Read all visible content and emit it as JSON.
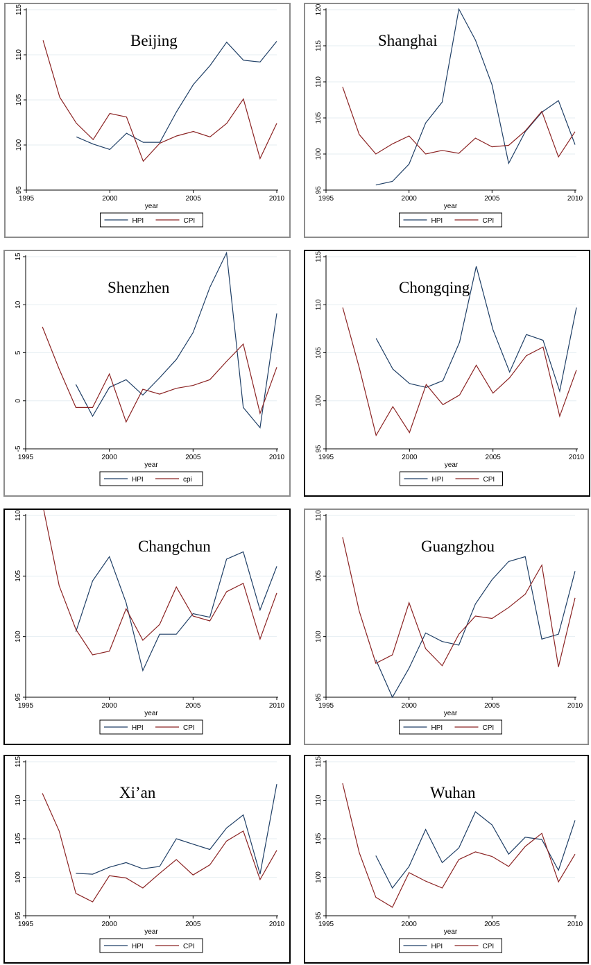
{
  "colors": {
    "hpi": "#1f3f66",
    "cpi": "#8b2323",
    "grid": "#e6eef2",
    "border_gray": "#8c8c8c",
    "border_black": "#000000"
  },
  "chart_data": [
    {
      "type": "line",
      "title": "Beijing",
      "xlabel": "year",
      "xlim": [
        1995,
        2010
      ],
      "ylim": [
        95,
        115
      ],
      "xticks": [
        "1995",
        "2000",
        "2005",
        "2010"
      ],
      "yticks": [
        "95",
        "100",
        "105",
        "110",
        "115"
      ],
      "grid": true,
      "legend": "bottom",
      "series": [
        {
          "name": "HPI",
          "x": [
            1998,
            1999,
            2000,
            2001,
            2002,
            2003,
            2004,
            2005,
            2006,
            2007,
            2008,
            2009,
            2010
          ],
          "y": [
            100.9,
            100.1,
            99.5,
            101.3,
            100.3,
            100.3,
            103.7,
            106.7,
            108.8,
            111.4,
            109.4,
            109.2,
            111.5
          ]
        },
        {
          "name": "CPI",
          "x": [
            1996,
            1997,
            1998,
            1999,
            2000,
            2001,
            2002,
            2003,
            2004,
            2005,
            2006,
            2007,
            2008,
            2009,
            2010
          ],
          "y": [
            111.6,
            105.3,
            102.4,
            100.6,
            103.5,
            103.1,
            98.2,
            100.2,
            101.0,
            101.5,
            100.9,
            102.4,
            105.1,
            98.5,
            102.4
          ]
        }
      ]
    },
    {
      "type": "line",
      "title": "Shanghai",
      "xlabel": "year",
      "xlim": [
        1995,
        2010
      ],
      "ylim": [
        95,
        120
      ],
      "xticks": [
        "1995",
        "2000",
        "2005",
        "2010"
      ],
      "yticks": [
        "95",
        "100",
        "105",
        "110",
        "115",
        "120"
      ],
      "grid": true,
      "legend": "bottom",
      "series": [
        {
          "name": "HPI",
          "x": [
            1998,
            1999,
            2000,
            2001,
            2002,
            2003,
            2004,
            2005,
            2006,
            2007,
            2008,
            2009,
            2010
          ],
          "y": [
            95.7,
            96.2,
            98.6,
            104.3,
            107.2,
            120.1,
            115.8,
            109.6,
            98.7,
            103.1,
            105.8,
            107.4,
            101.3
          ]
        },
        {
          "name": "CPI",
          "x": [
            1996,
            1997,
            1998,
            1999,
            2000,
            2001,
            2002,
            2003,
            2004,
            2005,
            2006,
            2007,
            2008,
            2009,
            2010
          ],
          "y": [
            109.3,
            102.7,
            100.0,
            101.4,
            102.5,
            100.0,
            100.5,
            100.1,
            102.2,
            101.0,
            101.2,
            103.2,
            105.9,
            99.6,
            103.1
          ]
        }
      ]
    },
    {
      "type": "line",
      "title": "Shenzhen",
      "xlabel": "year",
      "xlim": [
        1995,
        2010
      ],
      "ylim": [
        -5,
        15
      ],
      "xticks": [
        "1995",
        "2000",
        "2005",
        "2010"
      ],
      "yticks": [
        "-5",
        "0",
        "5",
        "10",
        "15"
      ],
      "grid": true,
      "legend": "bottom",
      "series": [
        {
          "name": "HPI",
          "x": [
            1998,
            1999,
            2000,
            2001,
            2002,
            2003,
            2004,
            2005,
            2006,
            2007,
            2008,
            2009,
            2010
          ],
          "y": [
            1.7,
            -1.6,
            1.4,
            2.2,
            0.6,
            2.4,
            4.3,
            7.1,
            11.8,
            15.4,
            -0.7,
            -2.8,
            9.1
          ]
        },
        {
          "name": "cpi",
          "x": [
            1996,
            1997,
            1998,
            1999,
            2000,
            2001,
            2002,
            2003,
            2004,
            2005,
            2006,
            2007,
            2008,
            2009,
            2010
          ],
          "y": [
            7.7,
            3.3,
            -0.7,
            -0.7,
            2.8,
            -2.2,
            1.2,
            0.7,
            1.3,
            1.6,
            2.2,
            4.1,
            5.9,
            -1.3,
            3.5
          ]
        }
      ]
    },
    {
      "type": "line",
      "title": "Chongqing",
      "xlabel": "year",
      "xlim": [
        1995,
        2010
      ],
      "ylim": [
        95,
        115
      ],
      "xticks": [
        "1995",
        "2000",
        "2005",
        "2010"
      ],
      "yticks": [
        "95",
        "100",
        "105",
        "110",
        "115"
      ],
      "grid": true,
      "legend": "bottom",
      "series": [
        {
          "name": "HPI",
          "x": [
            1998,
            1999,
            2000,
            2001,
            2002,
            2003,
            2004,
            2005,
            2006,
            2007,
            2008,
            2009,
            2010
          ],
          "y": [
            106.5,
            103.3,
            101.8,
            101.4,
            102.1,
            106.1,
            114.0,
            107.4,
            103.0,
            106.9,
            106.3,
            101.0,
            109.7
          ]
        },
        {
          "name": "CPI",
          "x": [
            1996,
            1997,
            1998,
            1999,
            2000,
            2001,
            2002,
            2003,
            2004,
            2005,
            2006,
            2007,
            2008,
            2009,
            2010
          ],
          "y": [
            109.7,
            103.4,
            96.4,
            99.4,
            96.7,
            101.7,
            99.6,
            100.6,
            103.7,
            100.8,
            102.4,
            104.7,
            105.6,
            98.4,
            103.2
          ]
        }
      ]
    },
    {
      "type": "line",
      "title": "Changchun",
      "xlabel": "year",
      "xlim": [
        1995,
        2010
      ],
      "ylim": [
        95,
        110
      ],
      "xticks": [
        "1995",
        "2000",
        "2005",
        "2010"
      ],
      "yticks": [
        "95",
        "100",
        "105",
        "110"
      ],
      "grid": true,
      "legend": "bottom",
      "series": [
        {
          "name": "HPI",
          "x": [
            1998,
            1999,
            2000,
            2001,
            2002,
            2003,
            2004,
            2005,
            2006,
            2007,
            2008,
            2009,
            2010
          ],
          "y": [
            100.4,
            104.6,
            106.6,
            102.8,
            97.2,
            100.2,
            100.2,
            101.9,
            101.6,
            106.4,
            107.0,
            102.2,
            105.8
          ]
        },
        {
          "name": "CPI",
          "x": [
            1996,
            1997,
            1998,
            1999,
            2000,
            2001,
            2002,
            2003,
            2004,
            2005,
            2006,
            2007,
            2008,
            2009,
            2010
          ],
          "y": [
            111.0,
            104.2,
            100.6,
            98.5,
            98.8,
            102.3,
            99.7,
            101.0,
            104.1,
            101.7,
            101.3,
            103.7,
            104.4,
            99.8,
            103.6
          ]
        }
      ]
    },
    {
      "type": "line",
      "title": "Guangzhou",
      "xlabel": "year",
      "xlim": [
        1995,
        2010
      ],
      "ylim": [
        95,
        110
      ],
      "xticks": [
        "1995",
        "2000",
        "2005",
        "2010"
      ],
      "yticks": [
        "95",
        "100",
        "105",
        "110"
      ],
      "grid": true,
      "legend": "bottom",
      "series": [
        {
          "name": "HPI",
          "x": [
            1998,
            1999,
            2000,
            2001,
            2002,
            2003,
            2004,
            2005,
            2006,
            2007,
            2008,
            2009,
            2010
          ],
          "y": [
            98.1,
            95.0,
            97.4,
            100.3,
            99.6,
            99.3,
            102.7,
            104.7,
            106.2,
            106.6,
            99.8,
            100.2,
            105.4
          ]
        },
        {
          "name": "CPI",
          "x": [
            1996,
            1997,
            1998,
            1999,
            2000,
            2001,
            2002,
            2003,
            2004,
            2005,
            2006,
            2007,
            2008,
            2009,
            2010
          ],
          "y": [
            108.2,
            102.1,
            97.8,
            98.5,
            102.8,
            99.0,
            97.6,
            100.2,
            101.7,
            101.5,
            102.4,
            103.5,
            105.9,
            97.5,
            103.2
          ]
        }
      ]
    },
    {
      "type": "line",
      "title": "Xi’an",
      "xlabel": "year",
      "xlim": [
        1995,
        2010
      ],
      "ylim": [
        95,
        115
      ],
      "xticks": [
        "1995",
        "2000",
        "2005",
        "2010"
      ],
      "yticks": [
        "95",
        "100",
        "105",
        "110",
        "115"
      ],
      "grid": true,
      "legend": "bottom",
      "series": [
        {
          "name": "HPI",
          "x": [
            1998,
            1999,
            2000,
            2001,
            2002,
            2003,
            2004,
            2005,
            2006,
            2007,
            2008,
            2009,
            2010
          ],
          "y": [
            100.5,
            100.4,
            101.3,
            101.9,
            101.1,
            101.4,
            105.0,
            104.3,
            103.6,
            106.4,
            108.1,
            100.4,
            112.1
          ]
        },
        {
          "name": "CPI",
          "x": [
            1996,
            1997,
            1998,
            1999,
            2000,
            2001,
            2002,
            2003,
            2004,
            2005,
            2006,
            2007,
            2008,
            2009,
            2010
          ],
          "y": [
            110.9,
            106.0,
            97.9,
            96.8,
            100.2,
            99.9,
            98.6,
            100.5,
            102.3,
            100.3,
            101.6,
            104.7,
            106.0,
            99.7,
            103.5
          ]
        }
      ]
    },
    {
      "type": "line",
      "title": "Wuhan",
      "xlabel": "year",
      "xlim": [
        1995,
        2010
      ],
      "ylim": [
        95,
        115
      ],
      "xticks": [
        "1995",
        "2000",
        "2005",
        "2010"
      ],
      "yticks": [
        "95",
        "100",
        "105",
        "110",
        "115"
      ],
      "grid": true,
      "legend": "bottom",
      "series": [
        {
          "name": "HPI",
          "x": [
            1998,
            1999,
            2000,
            2001,
            2002,
            2003,
            2004,
            2005,
            2006,
            2007,
            2008,
            2009,
            2010
          ],
          "y": [
            102.8,
            98.6,
            101.4,
            106.2,
            101.9,
            103.8,
            108.5,
            106.8,
            103.0,
            105.2,
            104.9,
            100.9,
            107.4
          ]
        },
        {
          "name": "CPI",
          "x": [
            1996,
            1997,
            1998,
            1999,
            2000,
            2001,
            2002,
            2003,
            2004,
            2005,
            2006,
            2007,
            2008,
            2009,
            2010
          ],
          "y": [
            112.2,
            103.2,
            97.4,
            96.1,
            100.6,
            99.5,
            98.6,
            102.3,
            103.3,
            102.7,
            101.4,
            104.0,
            105.7,
            99.4,
            103.0
          ]
        }
      ]
    }
  ]
}
